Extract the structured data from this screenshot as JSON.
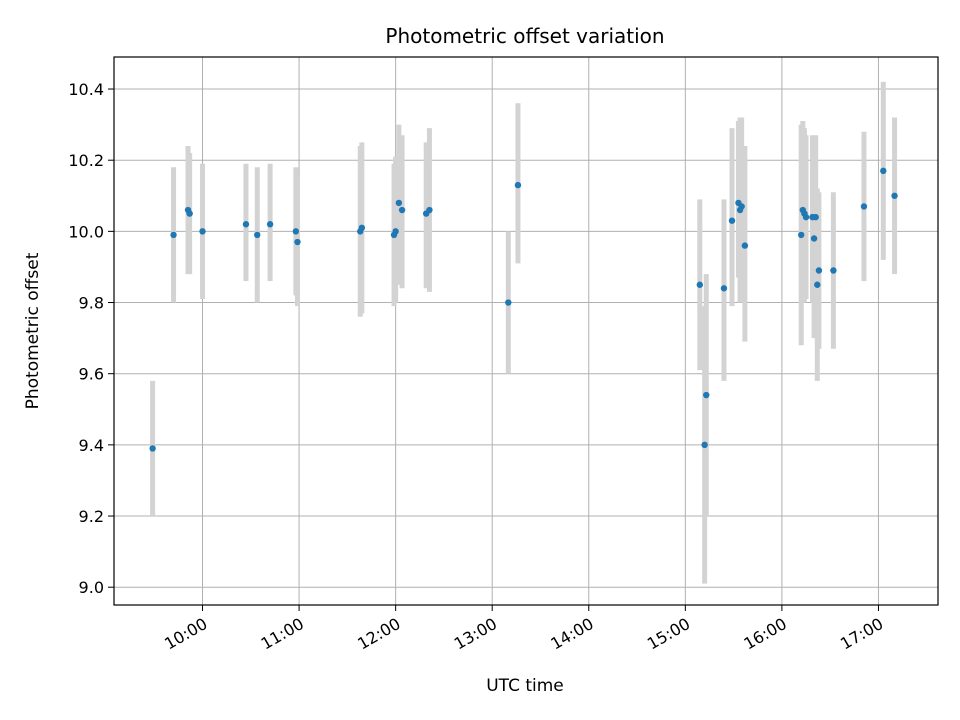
{
  "chart_data": {
    "type": "scatter",
    "title": "Photometric offset variation",
    "xlabel": "UTC time",
    "ylabel": "Photometric offset",
    "x_axis_kind": "time",
    "x_tick_labels": [
      "10:00",
      "11:00",
      "12:00",
      "13:00",
      "14:00",
      "15:00",
      "16:00",
      "17:00"
    ],
    "xlim": [
      "09:05",
      "17:37"
    ],
    "ylim": [
      8.95,
      10.49
    ],
    "y_ticks": [
      9.0,
      9.2,
      9.4,
      9.6,
      9.8,
      10.0,
      10.2,
      10.4
    ],
    "grid": true,
    "colors": {
      "point": "#1f77b4",
      "errorbar": "#d3d3d3",
      "grid": "#b0b0b0"
    },
    "series": [
      {
        "points": [
          {
            "x": "09:29",
            "y": 9.39,
            "low": 9.2,
            "high": 9.58
          },
          {
            "x": "09:42",
            "y": 9.99,
            "low": 9.8,
            "high": 10.18
          },
          {
            "x": "09:51",
            "y": 10.06,
            "low": 9.88,
            "high": 10.24
          },
          {
            "x": "09:52",
            "y": 10.05,
            "low": 9.88,
            "high": 10.22
          },
          {
            "x": "10:00",
            "y": 10.0,
            "low": 9.81,
            "high": 10.19
          },
          {
            "x": "10:27",
            "y": 10.02,
            "low": 9.86,
            "high": 10.19
          },
          {
            "x": "10:34",
            "y": 9.99,
            "low": 9.8,
            "high": 10.18
          },
          {
            "x": "10:42",
            "y": 10.02,
            "low": 9.86,
            "high": 10.19
          },
          {
            "x": "10:58",
            "y": 10.0,
            "low": 9.82,
            "high": 10.18
          },
          {
            "x": "10:59",
            "y": 9.97,
            "low": 9.79,
            "high": 10.16
          },
          {
            "x": "11:38",
            "y": 10.0,
            "low": 9.76,
            "high": 10.24
          },
          {
            "x": "11:39",
            "y": 10.01,
            "low": 9.77,
            "high": 10.25
          },
          {
            "x": "11:59",
            "y": 9.99,
            "low": 9.79,
            "high": 10.19
          },
          {
            "x": "12:00",
            "y": 10.0,
            "low": 9.8,
            "high": 10.21
          },
          {
            "x": "12:02",
            "y": 10.08,
            "low": 9.85,
            "high": 10.3
          },
          {
            "x": "12:04",
            "y": 10.06,
            "low": 9.84,
            "high": 10.27
          },
          {
            "x": "12:19",
            "y": 10.05,
            "low": 9.84,
            "high": 10.25
          },
          {
            "x": "12:21",
            "y": 10.06,
            "low": 9.83,
            "high": 10.29
          },
          {
            "x": "13:10",
            "y": 9.8,
            "low": 9.6,
            "high": 10.0
          },
          {
            "x": "13:16",
            "y": 10.13,
            "low": 9.91,
            "high": 10.36
          },
          {
            "x": "15:09",
            "y": 9.85,
            "low": 9.61,
            "high": 10.09
          },
          {
            "x": "15:12",
            "y": 9.4,
            "low": 9.01,
            "high": 9.79
          },
          {
            "x": "15:13",
            "y": 9.54,
            "low": 9.2,
            "high": 9.88
          },
          {
            "x": "15:24",
            "y": 9.84,
            "low": 9.58,
            "high": 10.09
          },
          {
            "x": "15:29",
            "y": 10.03,
            "low": 9.79,
            "high": 10.29
          },
          {
            "x": "15:33",
            "y": 10.08,
            "low": 9.87,
            "high": 10.31
          },
          {
            "x": "15:34",
            "y": 10.06,
            "low": 9.8,
            "high": 10.32
          },
          {
            "x": "15:35",
            "y": 10.07,
            "low": 9.84,
            "high": 10.32
          },
          {
            "x": "15:37",
            "y": 9.96,
            "low": 9.69,
            "high": 10.24
          },
          {
            "x": "16:12",
            "y": 9.99,
            "low": 9.68,
            "high": 10.3
          },
          {
            "x": "16:13",
            "y": 10.06,
            "low": 9.81,
            "high": 10.31
          },
          {
            "x": "16:14",
            "y": 10.05,
            "low": 9.8,
            "high": 10.29
          },
          {
            "x": "16:15",
            "y": 10.04,
            "low": 9.81,
            "high": 10.27
          },
          {
            "x": "16:19",
            "y": 10.04,
            "low": 9.8,
            "high": 10.27
          },
          {
            "x": "16:20",
            "y": 9.98,
            "low": 9.7,
            "high": 10.25
          },
          {
            "x": "16:21",
            "y": 10.04,
            "low": 9.81,
            "high": 10.27
          },
          {
            "x": "16:22",
            "y": 9.85,
            "low": 9.58,
            "high": 10.12
          },
          {
            "x": "16:23",
            "y": 9.89,
            "low": 9.67,
            "high": 10.11
          },
          {
            "x": "16:32",
            "y": 9.89,
            "low": 9.67,
            "high": 10.11
          },
          {
            "x": "16:51",
            "y": 10.07,
            "low": 9.86,
            "high": 10.28
          },
          {
            "x": "17:03",
            "y": 10.17,
            "low": 9.92,
            "high": 10.42
          },
          {
            "x": "17:10",
            "y": 10.1,
            "low": 9.88,
            "high": 10.32
          }
        ]
      }
    ]
  }
}
